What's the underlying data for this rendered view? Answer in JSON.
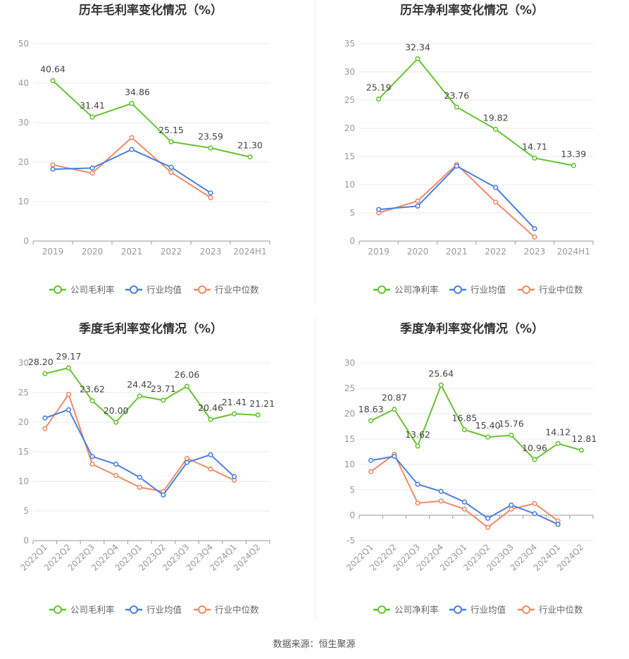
{
  "source": "数据来源：恒生聚源",
  "colors": {
    "company": "#65c32f",
    "avg": "#4a7fe0",
    "median": "#f08a65"
  },
  "legend_panels": [
    [
      "公司毛利率",
      "行业均值",
      "行业中位数"
    ],
    [
      "公司净利率",
      "行业均值",
      "行业中位数"
    ],
    [
      "公司毛利率",
      "行业均值",
      "行业中位数"
    ],
    [
      "公司净利率",
      "行业均值",
      "行业中位数"
    ]
  ],
  "chart_data": [
    {
      "type": "line",
      "title": "历年毛利率变化情况（%）",
      "categories": [
        "2019",
        "2020",
        "2021",
        "2022",
        "2023",
        "2024H1"
      ],
      "ylim": [
        0,
        50
      ],
      "yticks": [
        "0",
        "10",
        "20",
        "30",
        "40",
        "50"
      ],
      "series": [
        {
          "name": "公司毛利率",
          "values": [
            40.64,
            31.41,
            34.86,
            25.15,
            23.59,
            21.3
          ],
          "labels": [
            "40.64",
            "31.41",
            "34.86",
            "25.15",
            "23.59",
            "21.30"
          ]
        },
        {
          "name": "行业均值",
          "values": [
            18.2,
            18.5,
            23.2,
            18.7,
            12.2,
            null
          ]
        },
        {
          "name": "行业中位数",
          "values": [
            19.3,
            17.2,
            26.2,
            17.4,
            11.0,
            null
          ]
        }
      ]
    },
    {
      "type": "line",
      "title": "历年净利率变化情况（%）",
      "categories": [
        "2019",
        "2020",
        "2021",
        "2022",
        "2023",
        "2024H1"
      ],
      "ylim": [
        0,
        35
      ],
      "yticks": [
        "0",
        "5",
        "10",
        "15",
        "20",
        "25",
        "30",
        "35"
      ],
      "series": [
        {
          "name": "公司净利率",
          "values": [
            25.19,
            32.34,
            23.76,
            19.82,
            14.71,
            13.39
          ],
          "labels": [
            "25.19",
            "32.34",
            "23.76",
            "19.82",
            "14.71",
            "13.39"
          ]
        },
        {
          "name": "行业均值",
          "values": [
            5.6,
            6.2,
            13.3,
            9.5,
            2.2,
            null
          ]
        },
        {
          "name": "行业中位数",
          "values": [
            5.0,
            7.1,
            13.6,
            6.9,
            0.7,
            null
          ]
        }
      ]
    },
    {
      "type": "line",
      "title": "季度毛利率变化情况（%）",
      "categories": [
        "2022Q1",
        "2022Q2",
        "2022Q3",
        "2022Q4",
        "2023Q1",
        "2023Q2",
        "2023Q3",
        "2023Q4",
        "2024Q1",
        "2024Q2"
      ],
      "ylim": [
        0,
        30
      ],
      "yticks": [
        "0",
        "5",
        "10",
        "15",
        "20",
        "25",
        "30"
      ],
      "series": [
        {
          "name": "公司毛利率",
          "values": [
            28.2,
            29.17,
            23.62,
            20.0,
            24.42,
            23.71,
            26.06,
            20.46,
            21.41,
            21.21
          ],
          "labels": [
            "28.20",
            "29.17",
            "23.62",
            "20.00",
            "24.42",
            "23.71",
            "26.06",
            "20.46",
            "21.41",
            "21.21"
          ]
        },
        {
          "name": "行业均值",
          "values": [
            20.7,
            22.1,
            14.2,
            12.9,
            10.7,
            7.7,
            13.2,
            14.5,
            10.8,
            null
          ]
        },
        {
          "name": "行业中位数",
          "values": [
            18.9,
            24.7,
            12.9,
            11.0,
            9.0,
            8.3,
            13.9,
            12.1,
            10.2,
            null
          ]
        }
      ]
    },
    {
      "type": "line",
      "title": "季度净利率变化情况（%）",
      "categories": [
        "2022Q1",
        "2022Q2",
        "2022Q3",
        "2022Q4",
        "2023Q1",
        "2023Q2",
        "2023Q3",
        "2023Q4",
        "2024Q1",
        "2024Q2"
      ],
      "ylim": [
        -5,
        30
      ],
      "yticks": [
        "-5",
        "0",
        "5",
        "10",
        "15",
        "20",
        "25",
        "30"
      ],
      "series": [
        {
          "name": "公司净利率",
          "values": [
            18.63,
            20.87,
            13.62,
            25.64,
            16.85,
            15.4,
            15.76,
            10.96,
            14.12,
            12.81
          ],
          "labels": [
            "18.63",
            "20.87",
            "13.62",
            "25.64",
            "16.85",
            "15.40",
            "15.76",
            "10.96",
            "14.12",
            "12.81"
          ]
        },
        {
          "name": "行业均值",
          "values": [
            10.8,
            11.6,
            6.1,
            4.7,
            2.6,
            -0.6,
            2.0,
            0.3,
            -1.8,
            null
          ]
        },
        {
          "name": "行业中位数",
          "values": [
            8.6,
            12.0,
            2.4,
            2.8,
            1.2,
            -2.4,
            1.2,
            2.3,
            -1.1,
            null
          ]
        }
      ]
    }
  ]
}
